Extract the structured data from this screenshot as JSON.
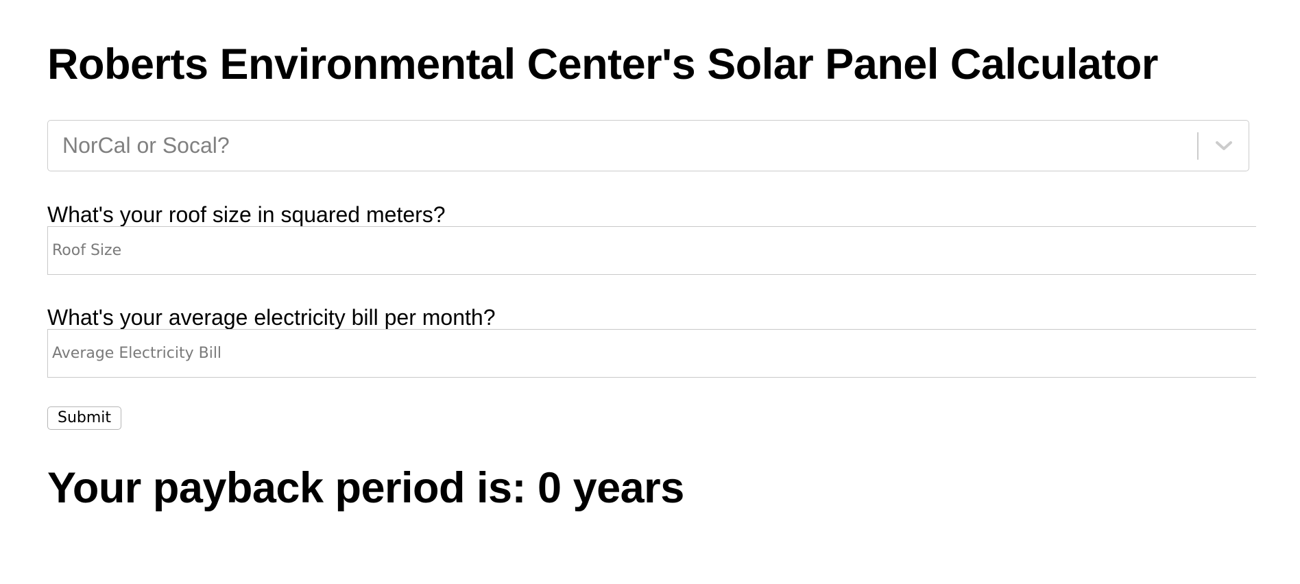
{
  "header": {
    "title": "Roberts Environmental Center's Solar Panel Calculator"
  },
  "region_select": {
    "placeholder": "NorCal or Socal?",
    "icon": "chevron-down-icon"
  },
  "roof_size": {
    "label": "What's your roof size in squared meters?",
    "value": "",
    "placeholder": "Roof Size"
  },
  "electricity_bill": {
    "label": "What's your average electricity bill per month?",
    "value": "",
    "placeholder": "Average Electricity Bill"
  },
  "submit": {
    "label": "Submit"
  },
  "result": {
    "text": "Your payback period is: 0 years"
  }
}
